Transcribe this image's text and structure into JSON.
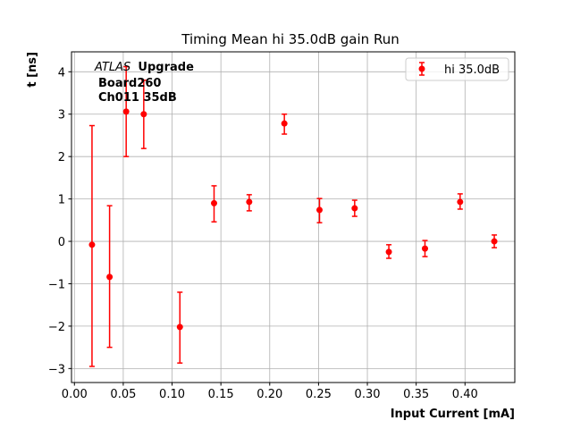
{
  "chart_data": {
    "type": "scatter",
    "title": "Timing Mean hi 35.0dB gain Run",
    "xlabel": "Input Current [mA]",
    "ylabel": "t [ns]",
    "xlim": [
      -0.003,
      0.451
    ],
    "ylim": [
      -3.33,
      4.47
    ],
    "xticks": [
      0.0,
      0.05,
      0.1,
      0.15,
      0.2,
      0.25,
      0.3,
      0.35,
      0.4
    ],
    "xtick_labels": [
      "0.00",
      "0.05",
      "0.10",
      "0.15",
      "0.20",
      "0.25",
      "0.30",
      "0.35",
      "0.40"
    ],
    "yticks": [
      -3,
      -2,
      -1,
      0,
      1,
      2,
      3,
      4
    ],
    "ytick_labels": [
      "−3",
      "−2",
      "−1",
      "0",
      "1",
      "2",
      "3",
      "4"
    ],
    "grid": true,
    "legend_placement": "top-right",
    "annotation": {
      "italic": "ATLAS",
      "bold": "Upgrade",
      "line2": "Board260",
      "line3": "Ch011 35dB"
    },
    "series": [
      {
        "name": "hi 35.0dB",
        "color": "#ff0000",
        "x": [
          0.018,
          0.036,
          0.053,
          0.071,
          0.108,
          0.143,
          0.179,
          0.215,
          0.251,
          0.287,
          0.322,
          0.359,
          0.395,
          0.43
        ],
        "y": [
          -0.08,
          -0.84,
          3.06,
          3.0,
          -2.02,
          0.9,
          0.93,
          2.78,
          0.74,
          0.78,
          -0.25,
          -0.17,
          0.93,
          0.0
        ],
        "y_low": [
          -2.95,
          -2.5,
          2.0,
          2.19,
          -2.87,
          0.46,
          0.72,
          2.53,
          0.44,
          0.59,
          -0.4,
          -0.36,
          0.76,
          -0.15
        ],
        "y_high": [
          2.73,
          0.84,
          4.12,
          3.8,
          -1.2,
          1.31,
          1.1,
          3.0,
          1.01,
          0.97,
          -0.08,
          0.02,
          1.12,
          0.15
        ]
      }
    ]
  }
}
